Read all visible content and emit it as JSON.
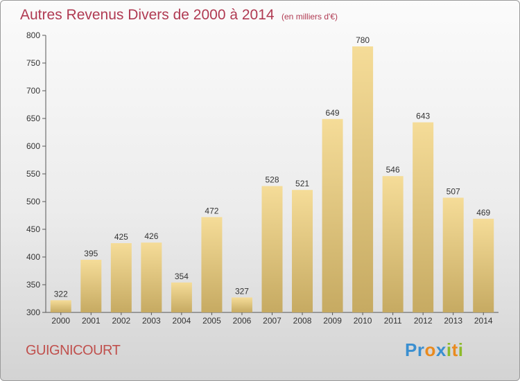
{
  "header": {
    "title": "Autres Revenus Divers de 2000 à 2014",
    "subtitle": "(en milliers d'€)"
  },
  "footer": {
    "commune": "GUIGNICOURT",
    "logo_text": "Proxiti",
    "logo_letters": [
      {
        "ch": "P",
        "color": "#3a8fd0"
      },
      {
        "ch": "r",
        "color": "#3a8fd0"
      },
      {
        "ch": "o",
        "color": "#e98a1e"
      },
      {
        "ch": "x",
        "color": "#3a8fd0"
      },
      {
        "ch": "i",
        "color": "#8dbb2a"
      },
      {
        "ch": "t",
        "color": "#e98a1e"
      },
      {
        "ch": "i",
        "color": "#8dbb2a"
      }
    ]
  },
  "chart_data": {
    "type": "bar",
    "title": "Autres Revenus Divers de 2000 à 2014",
    "subtitle": "(en milliers d'€)",
    "xlabel": "",
    "ylabel": "",
    "categories": [
      "2000",
      "2001",
      "2002",
      "2003",
      "2004",
      "2005",
      "2006",
      "2007",
      "2008",
      "2009",
      "2010",
      "2011",
      "2012",
      "2013",
      "2014"
    ],
    "values": [
      322,
      395,
      425,
      426,
      354,
      472,
      327,
      528,
      521,
      649,
      780,
      546,
      643,
      507,
      469
    ],
    "ylim": [
      300,
      800
    ],
    "yticks": [
      300,
      350,
      400,
      450,
      500,
      550,
      600,
      650,
      700,
      750,
      800
    ],
    "grid": false,
    "legend": "none",
    "bar_color_top": "#f5dc98",
    "bar_color_bottom": "#c6aa62"
  }
}
